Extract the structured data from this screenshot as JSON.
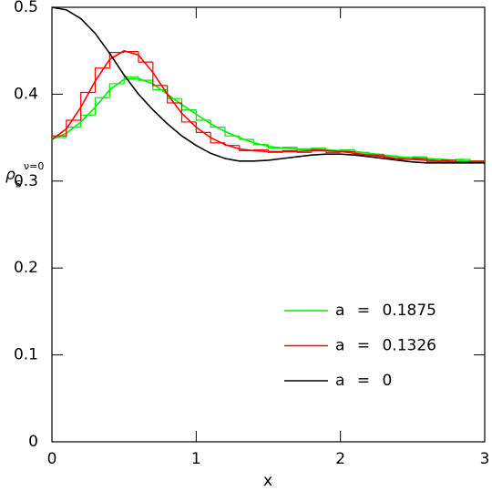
{
  "chart_data": {
    "type": "line",
    "xlabel": "x",
    "ylabel": "ρ",
    "ylabel_sub": "s",
    "ylabel_sup": "ν=0",
    "xlim": [
      0,
      3
    ],
    "ylim": [
      0,
      0.5
    ],
    "xticks": [
      0,
      1,
      2,
      3
    ],
    "yticks": [
      0,
      0.1,
      0.2,
      0.3,
      0.4,
      0.5
    ],
    "legend": "right",
    "x": [
      0,
      0.1,
      0.2,
      0.3,
      0.4,
      0.5,
      0.6,
      0.7,
      0.8,
      0.9,
      1,
      1.1,
      1.2,
      1.3,
      1.4,
      1.5,
      1.6,
      1.7,
      1.8,
      1.9,
      2,
      2.1,
      2.2,
      2.3,
      2.4,
      2.5,
      2.6,
      2.7,
      2.8,
      2.9,
      3
    ],
    "bins": [
      0,
      0.1,
      0.2,
      0.3,
      0.4,
      0.5,
      0.6,
      0.7,
      0.8,
      0.9,
      1,
      1.1,
      1.2,
      1.3,
      1.4,
      1.5,
      1.6,
      1.7,
      1.8,
      1.9,
      2,
      2.1,
      2.2,
      2.3,
      2.4,
      2.5,
      2.6,
      2.7,
      2.8,
      2.9,
      3
    ],
    "series": [
      {
        "name": "a = 0.1875",
        "color": "#00ee00",
        "values": [
          0.348,
          0.355,
          0.368,
          0.385,
          0.405,
          0.417,
          0.418,
          0.412,
          0.4,
          0.388,
          0.377,
          0.366,
          0.357,
          0.35,
          0.344,
          0.34,
          0.338,
          0.337,
          0.337,
          0.336,
          0.335,
          0.334,
          0.332,
          0.33,
          0.328,
          0.327,
          0.326,
          0.325,
          0.324,
          0.323,
          0.323
        ],
        "hist": [
          0.35,
          0.362,
          0.376,
          0.396,
          0.412,
          0.42,
          0.416,
          0.405,
          0.395,
          0.382,
          0.37,
          0.362,
          0.352,
          0.348,
          0.342,
          0.338,
          0.339,
          0.336,
          0.338,
          0.335,
          0.336,
          0.333,
          0.331,
          0.329,
          0.327,
          0.328,
          0.325,
          0.324,
          0.325,
          0.322
        ]
      },
      {
        "name": "a = 0.1326",
        "color": "#ff0000",
        "values": [
          0.348,
          0.36,
          0.385,
          0.415,
          0.44,
          0.45,
          0.445,
          0.425,
          0.4,
          0.378,
          0.362,
          0.35,
          0.342,
          0.337,
          0.335,
          0.334,
          0.334,
          0.334,
          0.335,
          0.335,
          0.334,
          0.332,
          0.33,
          0.328,
          0.326,
          0.325,
          0.324,
          0.323,
          0.322,
          0.322,
          0.322
        ],
        "hist": [
          0.352,
          0.37,
          0.402,
          0.43,
          0.448,
          0.449,
          0.437,
          0.41,
          0.39,
          0.368,
          0.356,
          0.344,
          0.341,
          0.335,
          0.336,
          0.333,
          0.335,
          0.333,
          0.336,
          0.333,
          0.334,
          0.33,
          0.33,
          0.326,
          0.325,
          0.326,
          0.322,
          0.324,
          0.321,
          0.323
        ]
      },
      {
        "name": "a = 0",
        "color": "#000000",
        "values": [
          0.5,
          0.497,
          0.487,
          0.47,
          0.447,
          0.422,
          0.4,
          0.382,
          0.366,
          0.352,
          0.341,
          0.332,
          0.326,
          0.323,
          0.323,
          0.324,
          0.326,
          0.328,
          0.33,
          0.331,
          0.331,
          0.33,
          0.328,
          0.326,
          0.324,
          0.322,
          0.321,
          0.321,
          0.321,
          0.321,
          0.321
        ]
      }
    ]
  }
}
